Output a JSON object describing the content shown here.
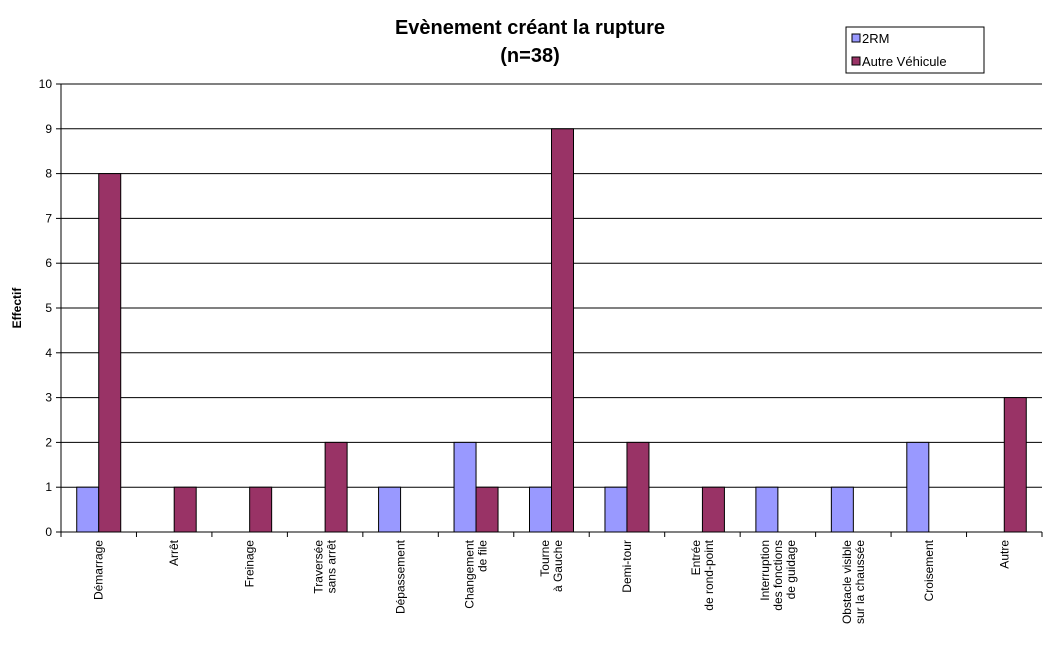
{
  "chart_data": {
    "type": "bar",
    "title_line1": "Evènement créant la rupture",
    "title_line2": "(n=38)",
    "xlabel": "",
    "ylabel": "Effectif",
    "ylim": [
      0,
      10
    ],
    "yticks": [
      0,
      1,
      2,
      3,
      4,
      5,
      6,
      7,
      8,
      9,
      10
    ],
    "grid": true,
    "legend_position": "top-right",
    "categories": [
      [
        "Démarrage"
      ],
      [
        "Arrêt"
      ],
      [
        "Freinage"
      ],
      [
        "Traversée",
        "sans arrêt"
      ],
      [
        "Dépassement"
      ],
      [
        "Changement",
        "de file"
      ],
      [
        "Tourne",
        "à Gauche"
      ],
      [
        "Demi-tour"
      ],
      [
        "Entrée",
        "de rond-point"
      ],
      [
        "Interruption",
        "des fonctions",
        "de guidage"
      ],
      [
        "Obstacle visible",
        "sur la chaussée"
      ],
      [
        "Croisement"
      ],
      [
        "Autre"
      ]
    ],
    "series": [
      {
        "name": "2RM",
        "color": "#9999ff",
        "values": [
          1,
          0,
          0,
          0,
          1,
          2,
          1,
          1,
          0,
          1,
          1,
          2,
          0
        ]
      },
      {
        "name": "Autre Véhicule",
        "color": "#993366",
        "values": [
          8,
          1,
          1,
          2,
          0,
          1,
          9,
          2,
          1,
          0,
          0,
          0,
          3
        ]
      }
    ]
  }
}
